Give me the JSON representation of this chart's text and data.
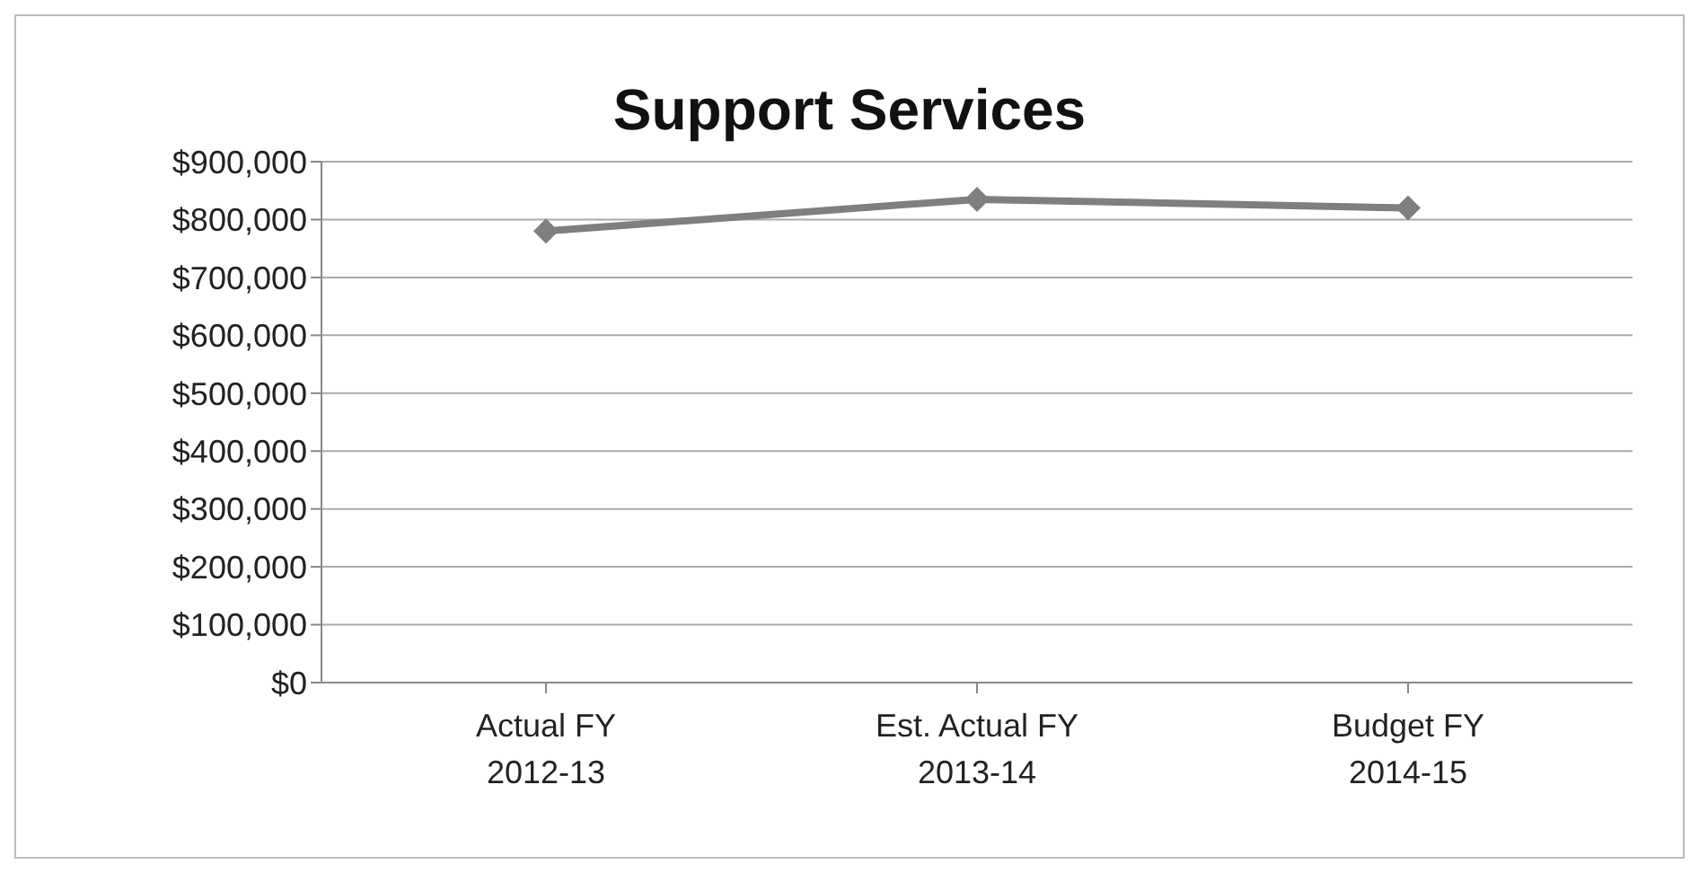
{
  "chart_data": {
    "type": "line",
    "title": "Support Services",
    "categories": [
      "Actual FY 2012-13",
      "Est. Actual FY 2013-14",
      "Budget FY 2014-15"
    ],
    "series": [
      {
        "color": "#7f7f7f",
        "values": [
          780000,
          835000,
          820000
        ]
      }
    ],
    "ylim": [
      0,
      900000
    ],
    "yticks": [
      {
        "value": 0,
        "label": "$0"
      },
      {
        "value": 100000,
        "label": "$100,000"
      },
      {
        "value": 200000,
        "label": "$200,000"
      },
      {
        "value": 300000,
        "label": "$300,000"
      },
      {
        "value": 400000,
        "label": "$400,000"
      },
      {
        "value": 500000,
        "label": "$500,000"
      },
      {
        "value": 600000,
        "label": "$600,000"
      },
      {
        "value": 700000,
        "label": "$700,000"
      },
      {
        "value": 800000,
        "label": "$800,000"
      },
      {
        "value": 900000,
        "label": "$900,000"
      }
    ],
    "grid": "y",
    "legend": false,
    "marker": "diamond",
    "line_style": "solid"
  }
}
